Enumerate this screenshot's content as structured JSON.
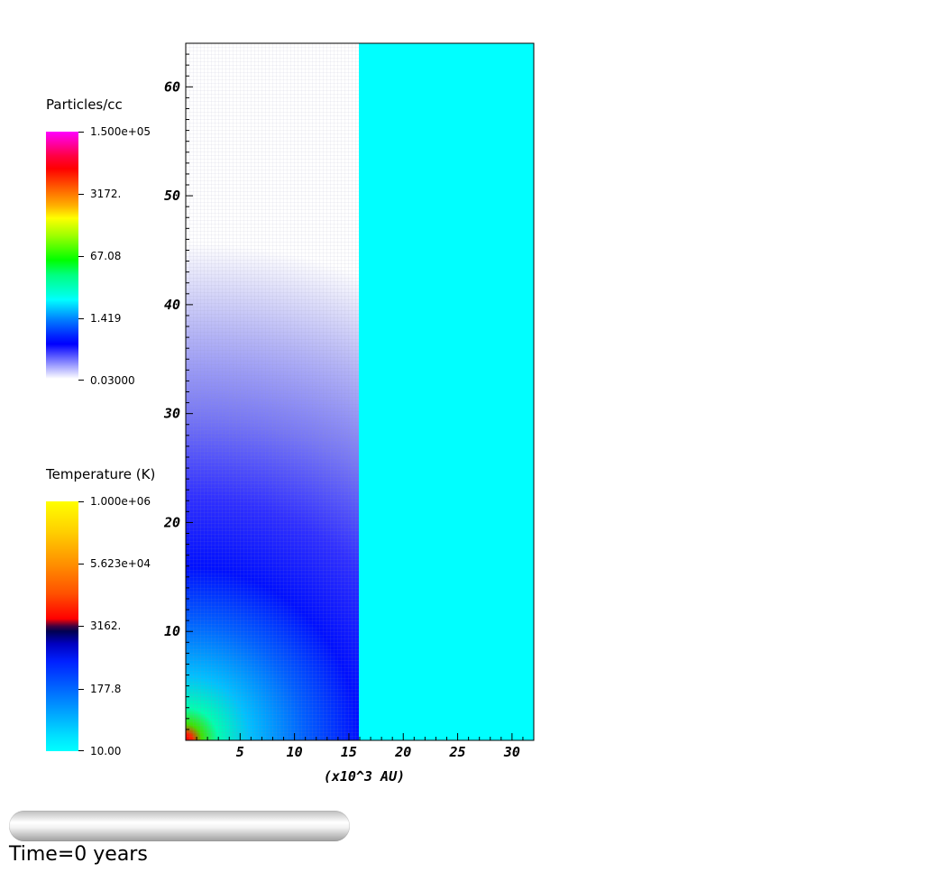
{
  "legends": {
    "density": {
      "title": "Particles/cc",
      "labels": [
        "1.500e+05",
        "3172.",
        "67.08",
        "1.419",
        "0.03000"
      ]
    },
    "temperature": {
      "title": "Temperature (K)",
      "labels": [
        "1.000e+06",
        "5.623e+04",
        "3162.",
        "177.8",
        "10.00"
      ]
    }
  },
  "chart_data": {
    "type": "heatmap",
    "xlabel": "(x10^3 AU)",
    "ylabel": "",
    "x_ticks": [
      5,
      10,
      15,
      20,
      25,
      30
    ],
    "y_ticks": [
      10,
      20,
      30,
      40,
      50,
      60
    ],
    "xlim": [
      0,
      32
    ],
    "ylim": [
      0,
      64
    ],
    "left_panel": {
      "quantity": "Particles/cc",
      "x_range": [
        0,
        16
      ],
      "colormap": "white-blue-cyan-green-yellow-red-magenta",
      "log_scale": true,
      "range": [
        0.03,
        150000
      ]
    },
    "right_panel": {
      "quantity": "Temperature (K)",
      "x_range": [
        16,
        32
      ],
      "value": 10,
      "color": "#00ffff",
      "log_scale": true,
      "range": [
        10,
        1000000
      ]
    }
  },
  "colors": {
    "cyan": "#00ffff",
    "blue": "#0000ff",
    "magenta": "#ff00ff"
  },
  "controls": {
    "time_label": "Time=0 years"
  }
}
